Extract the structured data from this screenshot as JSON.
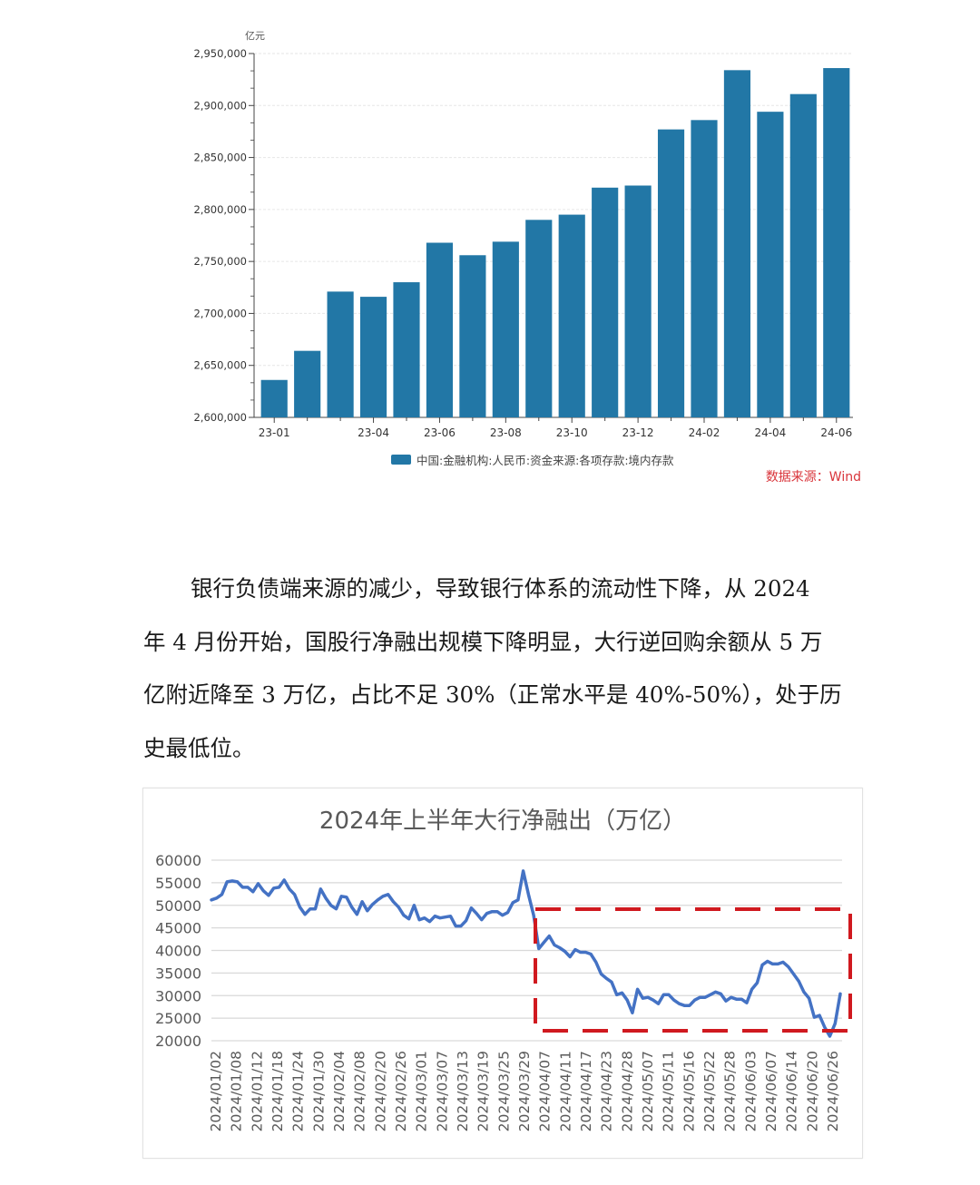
{
  "chart_data": [
    {
      "type": "bar",
      "title": "",
      "unit_label": "亿元",
      "xlabel": "",
      "ylabel": "亿元",
      "ylim": [
        2600000,
        2950000
      ],
      "y_ticks": [
        "2,600,000",
        "2,650,000",
        "2,700,000",
        "2,750,000",
        "2,800,000",
        "2,850,000",
        "2,900,000",
        "2,950,000"
      ],
      "x_tick_labels": [
        "23-01",
        "23-04",
        "23-06",
        "23-08",
        "23-10",
        "23-12",
        "24-02",
        "24-04",
        "24-06"
      ],
      "categories": [
        "23-01",
        "23-02",
        "23-03",
        "23-04",
        "23-05",
        "23-06",
        "23-07",
        "23-08",
        "23-09",
        "23-10",
        "23-11",
        "23-12",
        "24-01",
        "24-02",
        "24-03",
        "24-04",
        "24-05",
        "24-06"
      ],
      "series": [
        {
          "name": "中国:金融机构:人民币:资金来源:各项存款:境内存款",
          "color": "#2277a6",
          "values": [
            2636000,
            2664000,
            2721000,
            2716000,
            2730000,
            2768000,
            2756000,
            2769000,
            2790000,
            2795000,
            2821000,
            2823000,
            2877000,
            2886000,
            2934000,
            2894000,
            2911000,
            2936000
          ]
        }
      ],
      "legend_position": "bottom",
      "grid": true,
      "source_note": "数据来源：Wind"
    },
    {
      "type": "line",
      "title": "2024年上半年大行净融出（万亿）",
      "xlabel": "",
      "ylabel": "",
      "ylim": [
        20000,
        60000
      ],
      "y_ticks": [
        "60000",
        "55000",
        "50000",
        "45000",
        "40000",
        "35000",
        "30000",
        "25000",
        "20000"
      ],
      "x_tick_labels": [
        "2024/01/02",
        "2024/01/08",
        "2024/01/12",
        "2024/01/18",
        "2024/01/24",
        "2024/01/30",
        "2024/02/04",
        "2024/02/08",
        "2024/02/20",
        "2024/02/26",
        "2024/03/01",
        "2024/03/07",
        "2024/03/13",
        "2024/03/19",
        "2024/03/25",
        "2024/03/29",
        "2024/04/07",
        "2024/04/11",
        "2024/04/17",
        "2024/04/23",
        "2024/04/28",
        "2024/05/07",
        "2024/05/11",
        "2024/05/16",
        "2024/05/22",
        "2024/05/28",
        "2024/06/03",
        "2024/06/07",
        "2024/06/14",
        "2024/06/20",
        "2024/06/26"
      ],
      "series": [
        {
          "name": "大行净融出",
          "color": "#4472c4",
          "values": [
            51200,
            51600,
            52400,
            55200,
            55400,
            55200,
            54000,
            54000,
            53000,
            54800,
            53200,
            52200,
            53800,
            54000,
            55600,
            53600,
            52400,
            49600,
            48000,
            49200,
            49200,
            53600,
            51600,
            50000,
            49200,
            52000,
            51800,
            49600,
            48000,
            50800,
            48800,
            50200,
            51200,
            52000,
            52400,
            50800,
            49600,
            47800,
            47000,
            50000,
            46800,
            47200,
            46400,
            47600,
            47200,
            47400,
            47600,
            45400,
            45400,
            46600,
            49400,
            48200,
            46800,
            48200,
            48600,
            48600,
            47800,
            48400,
            50600,
            51200,
            57600,
            52400,
            47800,
            40400,
            41800,
            43200,
            41200,
            40600,
            39800,
            38600,
            40200,
            39600,
            39600,
            39200,
            37400,
            34800,
            33800,
            33000,
            30200,
            30600,
            29000,
            26200,
            31400,
            29400,
            29600,
            29000,
            28200,
            30200,
            30200,
            29000,
            28200,
            27800,
            27800,
            29000,
            29600,
            29600,
            30200,
            30800,
            30400,
            28800,
            29600,
            29200,
            29200,
            28400,
            31400,
            32800,
            36800,
            37600,
            37000,
            37000,
            37400,
            36400,
            34800,
            33200,
            30800,
            29400,
            25200,
            25600,
            23000,
            21000,
            23800,
            30400
          ],
          "annotation": "red dashed rectangle highlighting 2024/04/07 – 2024/06/26 (values ~22000–49000)"
        }
      ],
      "legend_position": "none",
      "grid": true
    }
  ],
  "chart1": {
    "unit": "亿元",
    "legend_label": "中国:金融机构:人民币:资金来源:各项存款:境内存款",
    "source": "数据来源：Wind"
  },
  "paragraph": {
    "lines": [
      "银行负债端来源的减少，导致银行体系的流动性下降，从 2024",
      "年 4 月份开始，国股行净融出规模下降明显，大行逆回购余额从 5 万",
      "亿附近降至 3 万亿，占比不足 30%（正常水平是 40%-50%），处于历",
      "史最低位。"
    ]
  },
  "chart2": {
    "title": "2024年上半年大行净融出（万亿）"
  },
  "colors": {
    "bar": "#2277a6",
    "line": "#4472c4",
    "highlight": "#d0191f",
    "source_text": "#d9343a"
  }
}
